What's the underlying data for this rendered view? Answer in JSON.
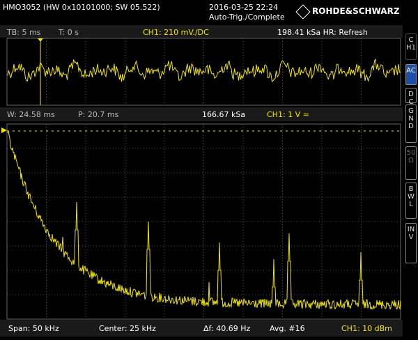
{
  "header": {
    "device": "HMO3052 (HW 0x10101000; SW 05.522)",
    "date": "2016-03-25 22:24",
    "status": "Auto-Trig./Complete",
    "logo": "ROHDE&SCHWARZ"
  },
  "time_bar": {
    "timebase": "TB: 5 ms",
    "trigger_time": "T: 0 s",
    "channel": "CH1: 210 mV./DC",
    "sample_rate": "198.41 kSa HR: Refresh"
  },
  "zoom_bar": {
    "window": "W: 24.58 ms",
    "position": "P: 20.7 ms",
    "sample_rate": "166.67 kSa",
    "channel": "CH1: 1 V ≈"
  },
  "fft_bar": {
    "span": "Span: 50 kHz",
    "center": "Center: 25 kHz",
    "resolution": "Δf: 40.69 Hz",
    "average": "Avg. #16",
    "channel": "CH1: 10 dBm"
  },
  "side_menu": {
    "channel": "CH1",
    "buttons": [
      "AC",
      "DC",
      "GND",
      "50 Ω",
      "BWL",
      "INV"
    ]
  }
}
